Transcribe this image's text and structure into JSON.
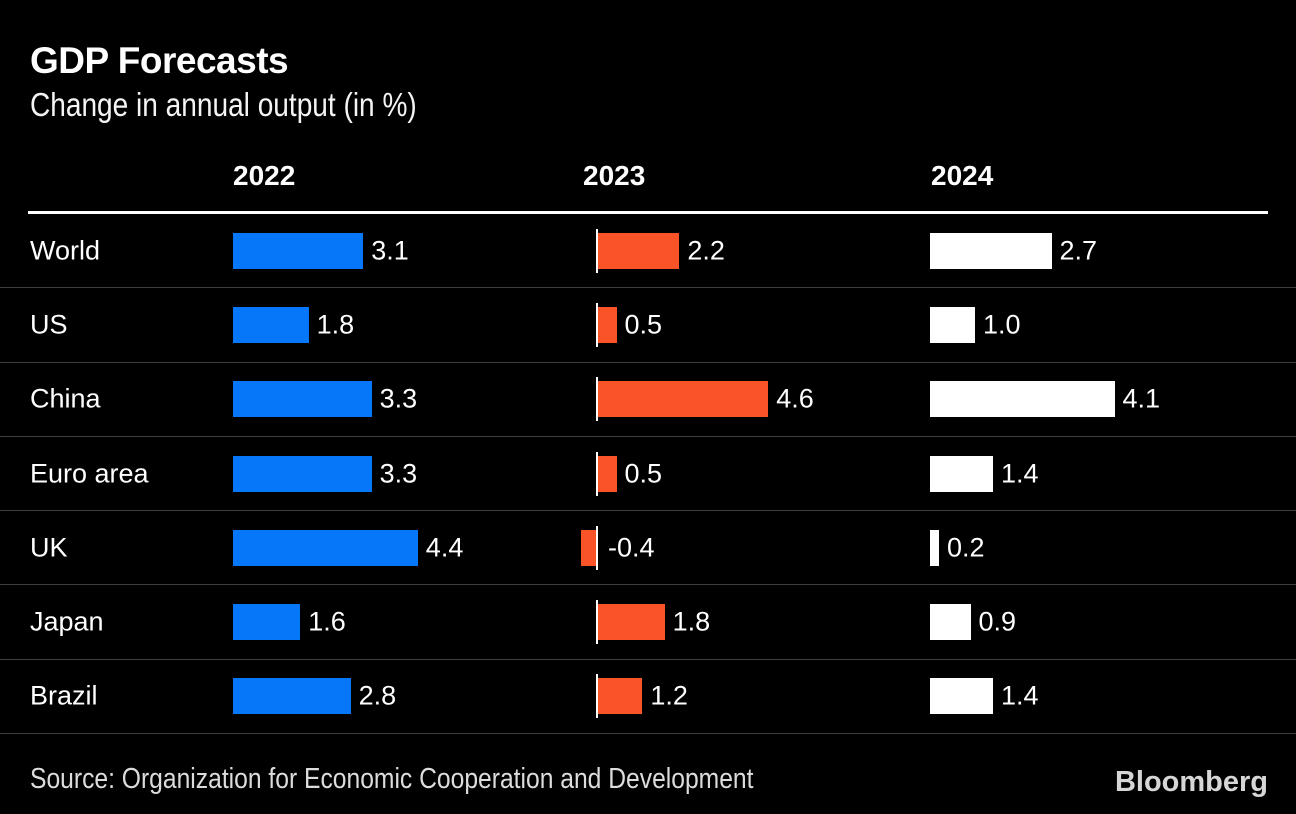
{
  "title": "GDP Forecasts",
  "subtitle": "Change in annual output (in %)",
  "source": "Source: Organization for Economic Cooperation and Development",
  "brand": "Bloomberg",
  "colors": {
    "background": "#000000",
    "bar_2022": "#0677f9",
    "bar_2023": "#fa5327",
    "bar_2024": "#ffffff",
    "row_divider": "#3e3e3e",
    "header_rule": "#ffffff",
    "text": "#ffffff",
    "footer_text": "#dcdcdc"
  },
  "chart_data": {
    "type": "bar",
    "orientation": "horizontal",
    "title": "GDP Forecasts",
    "subtitle": "Change in annual output (in %)",
    "value_unit": "% change in annual output",
    "value_format": "one-decimal",
    "grid": "row-dividers-only",
    "legend_position": "column-headers-top",
    "categories": [
      "World",
      "US",
      "China",
      "Euro area",
      "UK",
      "Japan",
      "Brazil"
    ],
    "series": [
      {
        "name": "2022",
        "color": "#0677f9",
        "values": [
          3.1,
          1.8,
          3.3,
          3.3,
          4.4,
          1.6,
          2.8
        ]
      },
      {
        "name": "2023",
        "color": "#fa5327",
        "values": [
          2.2,
          0.5,
          4.6,
          0.5,
          -0.4,
          1.8,
          1.2
        ]
      },
      {
        "name": "2024",
        "color": "#ffffff",
        "values": [
          2.7,
          1.0,
          4.1,
          1.4,
          0.2,
          0.9,
          1.4
        ]
      }
    ]
  }
}
